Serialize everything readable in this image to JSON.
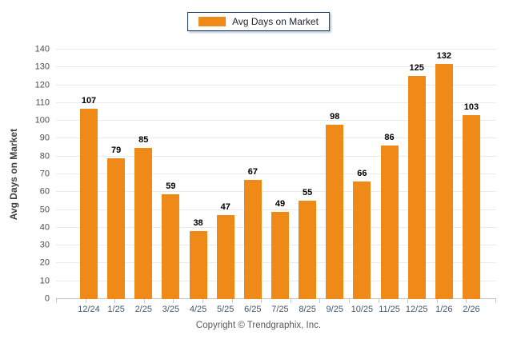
{
  "legend": {
    "label": "Avg Days on Market"
  },
  "chart_data": {
    "type": "bar",
    "title": "",
    "series_name": "Avg Days on Market",
    "categories": [
      "12/24",
      "1/25",
      "2/25",
      "3/25",
      "4/25",
      "5/25",
      "6/25",
      "7/25",
      "8/25",
      "9/25",
      "10/25",
      "11/25",
      "12/25",
      "1/26",
      "2/26"
    ],
    "values": [
      107,
      79,
      85,
      59,
      38,
      47,
      67,
      49,
      55,
      98,
      66,
      86,
      125,
      132,
      103
    ],
    "xlabel": "",
    "ylabel": "Avg Days on Market",
    "ylim": [
      0,
      140
    ],
    "yticks": [
      0,
      10,
      20,
      30,
      40,
      50,
      60,
      70,
      80,
      90,
      100,
      110,
      120,
      130,
      140
    ],
    "grid": true,
    "legend_position": "top-center",
    "bar_color": "#EF8A18"
  },
  "footer": {
    "copyright": "Copyright © Trendgraphix, Inc."
  }
}
